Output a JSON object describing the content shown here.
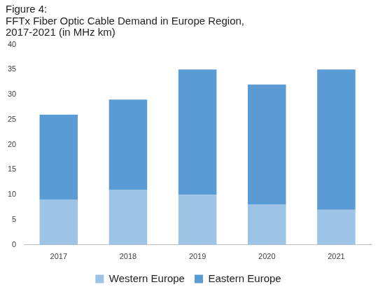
{
  "chart_data": {
    "type": "bar",
    "title": [
      "Figure 4:",
      "FFTx Fiber Optic Cable Demand in Europe Region,",
      "2017-2021 (in MHz km)"
    ],
    "categories": [
      "2017",
      "2018",
      "2019",
      "2020",
      "2021"
    ],
    "series": [
      {
        "name": "Western Europe",
        "color": "#9dc3e6",
        "values": [
          9,
          11,
          10,
          8,
          7
        ]
      },
      {
        "name": "Eastern Europe",
        "color": "#5b9bd5",
        "values": [
          17,
          18,
          25,
          24,
          28
        ]
      }
    ],
    "stacked": true,
    "ylim": [
      0,
      40
    ],
    "yticks": [
      0,
      5,
      10,
      15,
      20,
      25,
      30,
      35,
      40
    ],
    "grid": false,
    "legend": "bottom"
  }
}
